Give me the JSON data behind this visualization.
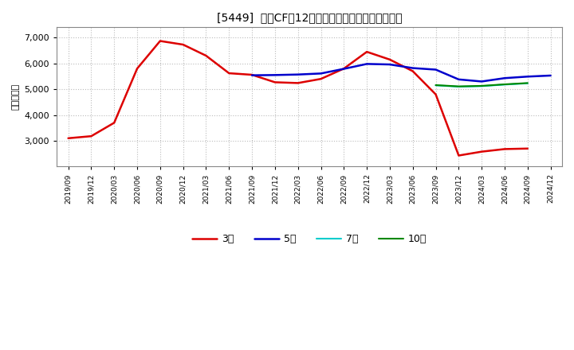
{
  "title": "[5449]  営業CFだ12か月移動合計の標準偏差の推移",
  "ylabel": "（百万円）",
  "ylim": [
    2000,
    7400
  ],
  "yticks": [
    3000,
    4000,
    5000,
    6000,
    7000
  ],
  "background_color": "#ffffff",
  "grid_color": "#bbbbbb",
  "series": {
    "3年": {
      "color": "#dd0000",
      "data": [
        [
          "2019/09",
          3100
        ],
        [
          "2019/12",
          3180
        ],
        [
          "2020/03",
          3700
        ],
        [
          "2020/06",
          5800
        ],
        [
          "2020/09",
          6870
        ],
        [
          "2020/12",
          6730
        ],
        [
          "2021/03",
          6300
        ],
        [
          "2021/06",
          5620
        ],
        [
          "2021/09",
          5560
        ],
        [
          "2021/12",
          5270
        ],
        [
          "2022/03",
          5240
        ],
        [
          "2022/06",
          5400
        ],
        [
          "2022/09",
          5800
        ],
        [
          "2022/12",
          6450
        ],
        [
          "2023/03",
          6150
        ],
        [
          "2023/06",
          5700
        ],
        [
          "2023/09",
          4800
        ],
        [
          "2023/12",
          2430
        ],
        [
          "2024/03",
          2580
        ],
        [
          "2024/06",
          2680
        ],
        [
          "2024/09",
          2700
        ]
      ]
    },
    "5年": {
      "color": "#0000cc",
      "data": [
        [
          "2021/09",
          5540
        ],
        [
          "2021/12",
          5550
        ],
        [
          "2022/03",
          5570
        ],
        [
          "2022/06",
          5610
        ],
        [
          "2022/09",
          5790
        ],
        [
          "2022/12",
          5980
        ],
        [
          "2023/03",
          5960
        ],
        [
          "2023/06",
          5820
        ],
        [
          "2023/09",
          5760
        ],
        [
          "2023/12",
          5380
        ],
        [
          "2024/03",
          5300
        ],
        [
          "2024/06",
          5430
        ],
        [
          "2024/09",
          5490
        ],
        [
          "2024/12",
          5530
        ]
      ]
    },
    "7年": {
      "color": "#00cccc",
      "data": [
        [
          "2023/09",
          5150
        ],
        [
          "2023/12",
          5100
        ],
        [
          "2024/03",
          5120
        ],
        [
          "2024/06",
          5180
        ],
        [
          "2024/09",
          5230
        ]
      ]
    },
    "10年": {
      "color": "#008800",
      "data": [
        [
          "2023/09",
          5160
        ],
        [
          "2023/12",
          5110
        ],
        [
          "2024/03",
          5130
        ],
        [
          "2024/06",
          5190
        ],
        [
          "2024/09",
          5240
        ]
      ]
    }
  },
  "xtick_labels": [
    "2019/09",
    "2019/12",
    "2020/03",
    "2020/06",
    "2020/09",
    "2020/12",
    "2021/03",
    "2021/06",
    "2021/09",
    "2021/12",
    "2022/03",
    "2022/06",
    "2022/09",
    "2022/12",
    "2023/03",
    "2023/06",
    "2023/09",
    "2023/12",
    "2024/03",
    "2024/06",
    "2024/09",
    "2024/12"
  ],
  "legend_labels": [
    "3年",
    "5年",
    "7年",
    "10年"
  ]
}
